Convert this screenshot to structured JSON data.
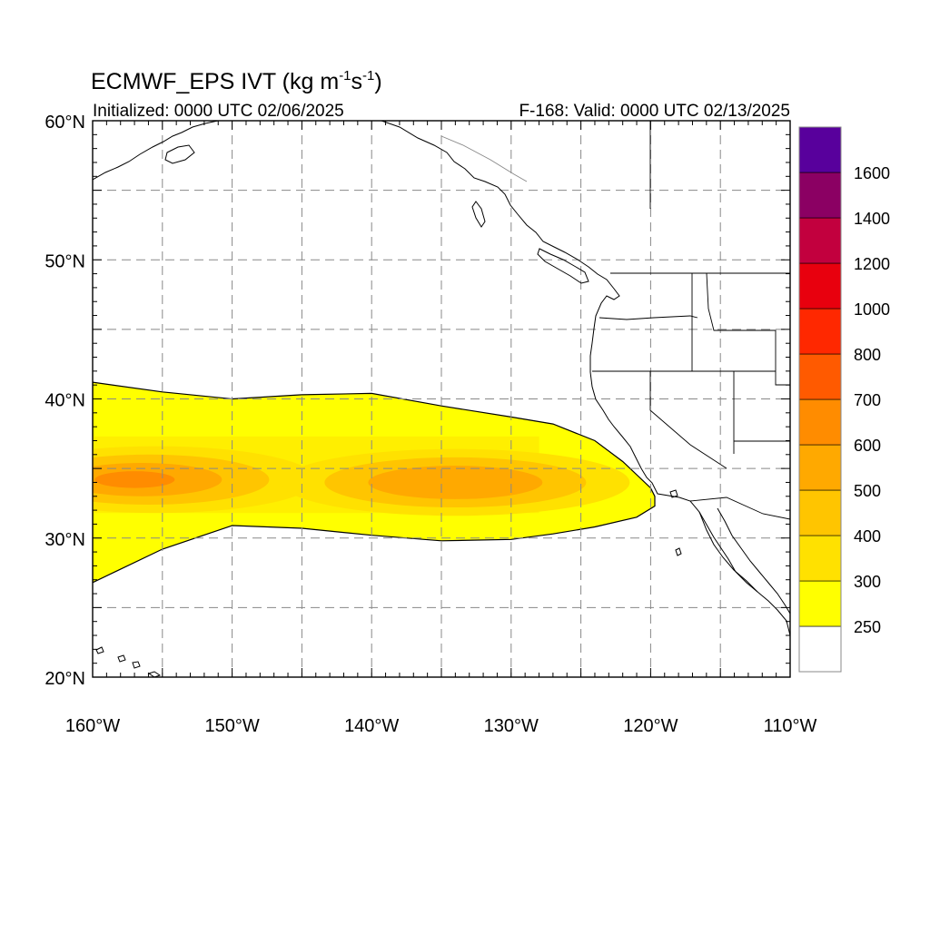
{
  "title": {
    "main": "ECMWF_EPS IVT (kg m",
    "sup1": "-1",
    "mid": "s",
    "sup2": "-1",
    "close": ")"
  },
  "subtitle_left": "Initialized: 0000 UTC 02/06/2025",
  "subtitle_right": "F-168: Valid: 0000 UTC 02/13/2025",
  "map": {
    "lon_range": [
      -160,
      -110
    ],
    "lat_range": [
      20,
      60
    ],
    "lon_ticks": [
      {
        "value": -160,
        "label": "160°W"
      },
      {
        "value": -150,
        "label": "150°W"
      },
      {
        "value": -140,
        "label": "140°W"
      },
      {
        "value": -130,
        "label": "130°W"
      },
      {
        "value": -120,
        "label": "120°W"
      },
      {
        "value": -110,
        "label": "110°W"
      }
    ],
    "lat_ticks": [
      {
        "value": 60,
        "label": "60°N"
      },
      {
        "value": 50,
        "label": "50°N"
      },
      {
        "value": 40,
        "label": "40°N"
      },
      {
        "value": 30,
        "label": "30°N"
      },
      {
        "value": 20,
        "label": "20°N"
      }
    ],
    "grid_lon": [
      -155,
      -150,
      -145,
      -140,
      -135,
      -130,
      -125,
      -120,
      -115
    ],
    "grid_lat": [
      25,
      30,
      35,
      40,
      45,
      50,
      55
    ],
    "grid": true,
    "grid_style": "dashed"
  },
  "colorbar": {
    "labels": [
      "250",
      "300",
      "400",
      "500",
      "600",
      "700",
      "800",
      "1000",
      "1200",
      "1400",
      "1600"
    ],
    "colors": [
      "#ffffff",
      "#ffff00",
      "#ffe100",
      "#ffc500",
      "#ffa900",
      "#ff8c00",
      "#ff5a00",
      "#ff2800",
      "#e8000e",
      "#c2003e",
      "#8b0063",
      "#58009c"
    ]
  },
  "ivt_band": {
    "west_edge_lon": -160,
    "east_tip_lon": -119.7,
    "upper_edge_lat": [
      [
        -160,
        41.2
      ],
      [
        -155,
        40.5
      ],
      [
        -150,
        40.0
      ],
      [
        -145,
        40.3
      ],
      [
        -140,
        40.4
      ],
      [
        -135,
        39.5
      ],
      [
        -130,
        38.7
      ],
      [
        -127,
        38.2
      ],
      [
        -124,
        37.0
      ],
      [
        -122,
        35.5
      ],
      [
        -120,
        33.6
      ],
      [
        -119.7,
        33.0
      ]
    ],
    "lower_edge_lat": [
      [
        -119.7,
        32.3
      ],
      [
        -121,
        31.5
      ],
      [
        -124,
        30.8
      ],
      [
        -127,
        30.3
      ],
      [
        -130,
        29.9
      ],
      [
        -135,
        29.8
      ],
      [
        -140,
        30.2
      ],
      [
        -145,
        30.7
      ],
      [
        -150,
        30.9
      ],
      [
        -155,
        29.2
      ],
      [
        -160,
        26.8
      ]
    ],
    "cores": [
      {
        "lon": -157.5,
        "lat": 34.2,
        "value": 620
      },
      {
        "lon": -134.0,
        "lat": 34.0,
        "value": 540
      }
    ]
  }
}
